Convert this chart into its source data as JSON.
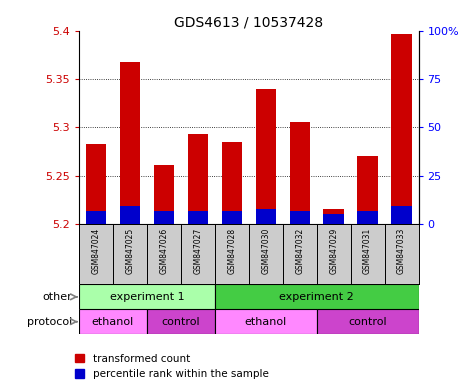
{
  "title": "GDS4613 / 10537428",
  "samples": [
    "GSM847024",
    "GSM847025",
    "GSM847026",
    "GSM847027",
    "GSM847028",
    "GSM847030",
    "GSM847032",
    "GSM847029",
    "GSM847031",
    "GSM847033"
  ],
  "red_values": [
    5.283,
    5.368,
    5.261,
    5.293,
    5.285,
    5.34,
    5.305,
    5.215,
    5.27,
    5.397
  ],
  "blue_values": [
    5.213,
    5.218,
    5.213,
    5.213,
    5.213,
    5.215,
    5.213,
    5.21,
    5.213,
    5.218
  ],
  "ymin": 5.2,
  "ymax": 5.4,
  "yticks": [
    5.2,
    5.25,
    5.3,
    5.35,
    5.4
  ],
  "right_ytick_labels": [
    "0",
    "25",
    "50",
    "75",
    "100%"
  ],
  "right_ytick_pcts": [
    0,
    25,
    50,
    75,
    100
  ],
  "bar_width": 0.6,
  "red_color": "#cc0000",
  "blue_color": "#0000cc",
  "experiment1_color": "#aaffaa",
  "experiment2_color": "#44cc44",
  "ethanol_color": "#ff88ff",
  "control_color": "#cc44cc",
  "sample_bg_color": "#cccccc",
  "legend_red": "transformed count",
  "legend_blue": "percentile rank within the sample"
}
